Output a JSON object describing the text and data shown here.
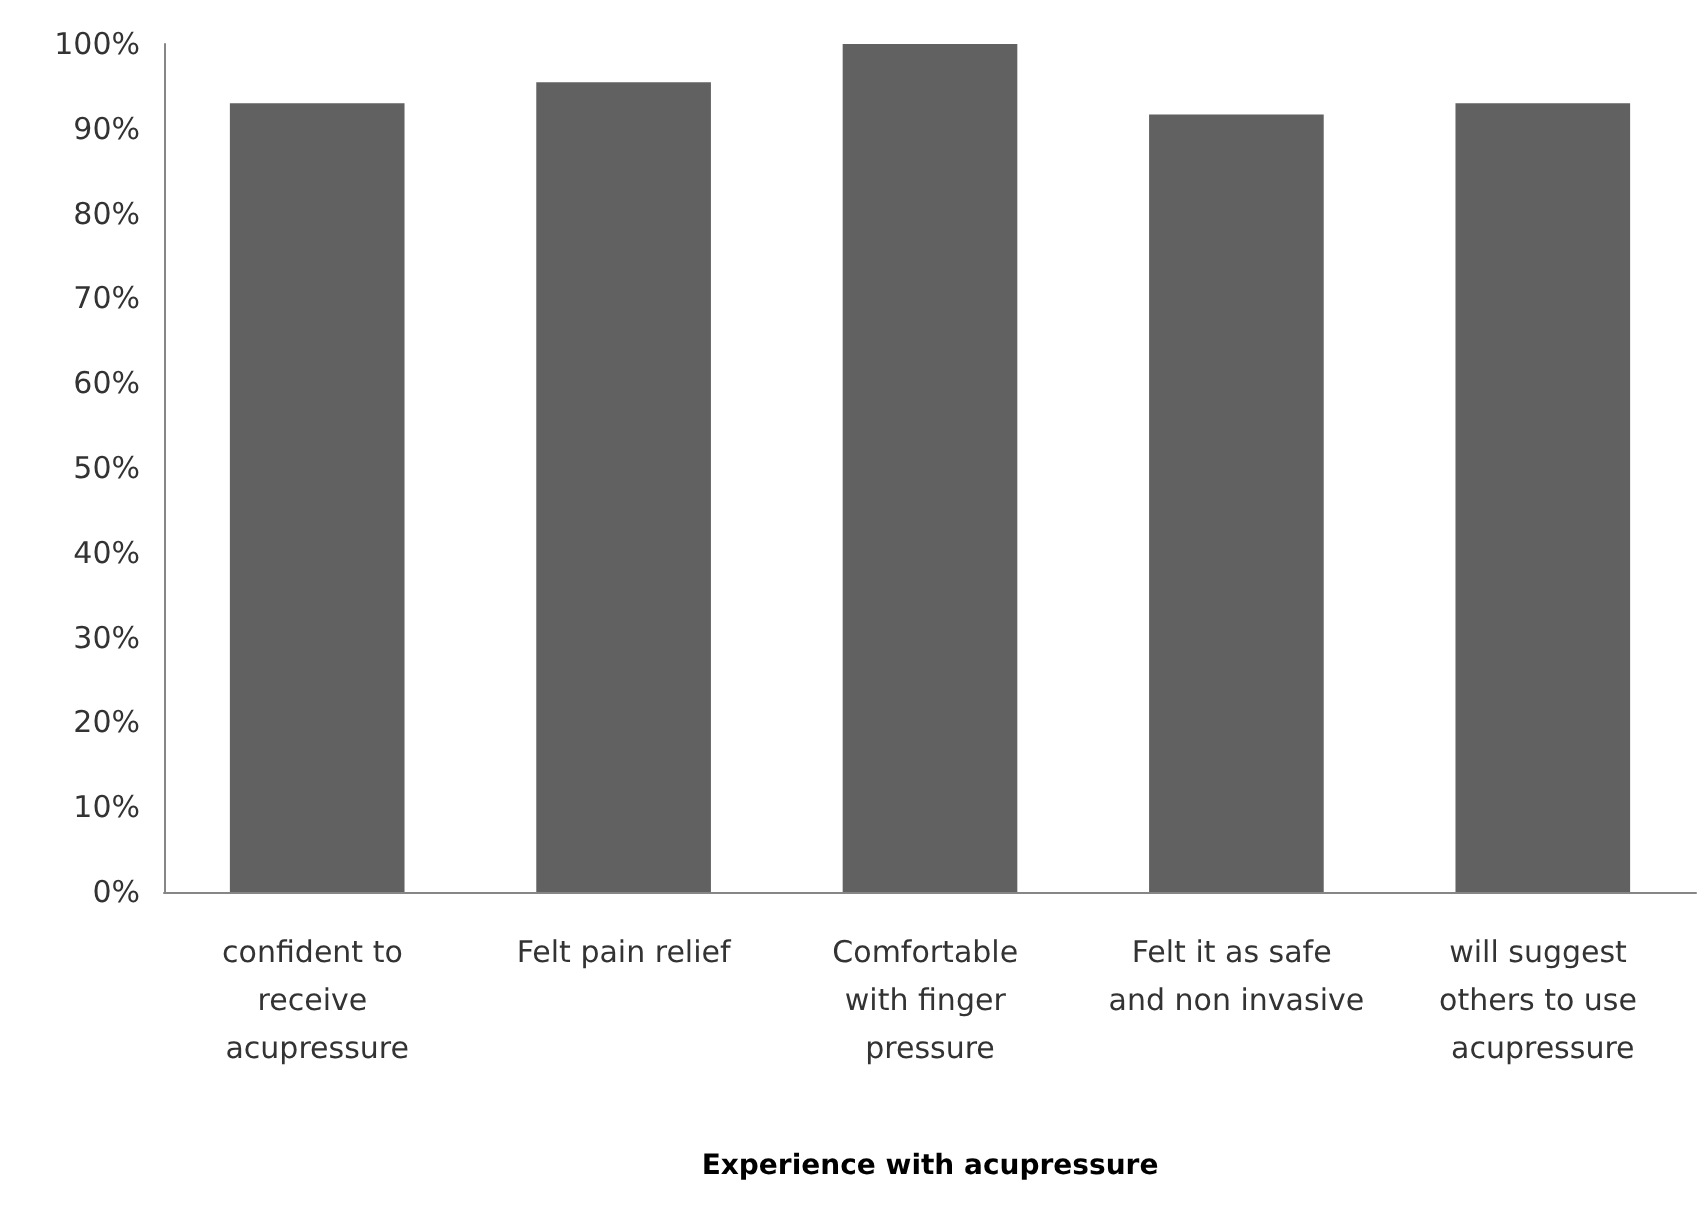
{
  "chart_data": {
    "type": "bar",
    "xlabel": "Experience with acupressure",
    "categories": [
      "confident to receive acupressure",
      "Felt pain relief",
      "Comfortable with finger pressure",
      "Felt it as safe and non invasive",
      "will suggest others to use acupressure"
    ],
    "values": [
      93,
      95.5,
      100,
      91.7,
      93
    ],
    "color": "#616161",
    "ylim": [
      0,
      100
    ],
    "yticks": [
      {
        "value": 0,
        "label": "0%"
      },
      {
        "value": 10,
        "label": "10%"
      },
      {
        "value": 20,
        "label": "20%"
      },
      {
        "value": 30,
        "label": "30%"
      },
      {
        "value": 40,
        "label": "40%"
      },
      {
        "value": 50,
        "label": "50%"
      },
      {
        "value": 60,
        "label": "60%"
      },
      {
        "value": 70,
        "label": "70%"
      },
      {
        "value": 80,
        "label": "80%"
      },
      {
        "value": 90,
        "label": "90%"
      },
      {
        "value": 100,
        "label": "100%"
      }
    ],
    "grid": false
  }
}
